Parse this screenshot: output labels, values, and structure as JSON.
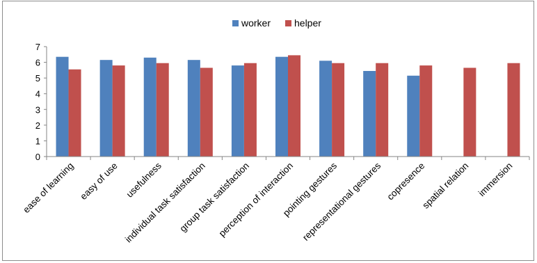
{
  "chart_data": {
    "type": "bar",
    "categories": [
      "ease of learning",
      "easy of use",
      "usefulness",
      "individual task satisfaction",
      "group task satisfaction",
      "perception of interaction",
      "pointing gestures",
      "representational gestures",
      "copresence",
      "spatial relation",
      "immersion"
    ],
    "series": [
      {
        "name": "worker",
        "color": "#4f81bd",
        "values": [
          6.35,
          6.15,
          6.3,
          6.15,
          5.8,
          6.35,
          6.1,
          5.45,
          5.15,
          null,
          null
        ]
      },
      {
        "name": "helper",
        "color": "#c0504d",
        "values": [
          5.55,
          5.8,
          5.95,
          5.65,
          5.95,
          6.45,
          5.95,
          5.95,
          5.8,
          5.65,
          5.95
        ]
      }
    ],
    "ylim": [
      0,
      7
    ],
    "yticks": [
      "0",
      "1",
      "2",
      "3",
      "4",
      "5",
      "6",
      "7"
    ],
    "legend_position": "top-center",
    "grid": false
  }
}
